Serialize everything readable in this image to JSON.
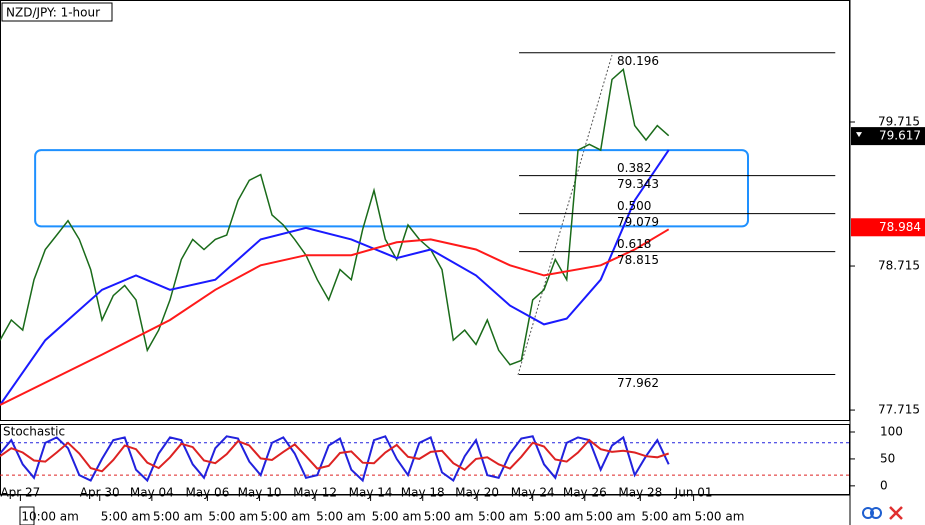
{
  "chart_data": [
    {
      "type": "line",
      "title": "NZD/JPY: 1-hour",
      "xlim": [
        0,
        75
      ],
      "ylim": [
        77.646,
        80.562
      ],
      "yticks": [
        77.715,
        78.715,
        79.715
      ],
      "xticks": [
        {
          "value": 1.8,
          "label": "Apr 27"
        },
        {
          "value": 8.8,
          "label": "Apr 30"
        },
        {
          "value": 13.4,
          "label": "May 04"
        },
        {
          "value": 18.3,
          "label": "May 06"
        },
        {
          "value": 22.9,
          "label": "May 10"
        },
        {
          "value": 27.8,
          "label": "May 12"
        },
        {
          "value": 32.7,
          "label": "May 14"
        },
        {
          "value": 37.3,
          "label": "May 18"
        },
        {
          "value": 42.1,
          "label": "May 20"
        },
        {
          "value": 47,
          "label": "May 24"
        },
        {
          "value": 51.6,
          "label": "May 26"
        },
        {
          "value": 56.5,
          "label": "May 28"
        },
        {
          "value": 61.2,
          "label": "Jun 01"
        }
      ],
      "time_labels": [
        "10:00 am",
        "5:00 am",
        "5:00 am",
        "5:00 am",
        "5:00 am",
        "5:00 am",
        "5:00 am",
        "5:00 am",
        "5:00 am",
        "5:00 am",
        "5:00 am",
        "5:00 am",
        "5:00 am"
      ],
      "series": [
        {
          "name": "Price",
          "color": "#1a6b1a",
          "x": [
            0,
            1,
            2,
            3,
            4,
            5,
            6,
            7,
            8,
            9,
            10,
            11,
            12,
            13,
            14,
            15,
            16,
            17,
            18,
            19,
            20,
            21,
            22,
            23,
            24,
            25,
            26,
            27,
            28,
            29,
            30,
            31,
            32,
            33,
            34,
            35,
            36,
            37,
            38,
            39,
            40,
            41,
            42,
            43,
            44,
            45,
            46,
            47,
            48,
            49,
            50,
            51,
            52,
            53,
            54,
            55,
            56,
            57,
            58,
            59
          ],
          "values": [
            78.2,
            78.34,
            78.27,
            78.62,
            78.83,
            78.93,
            79.03,
            78.9,
            78.69,
            78.34,
            78.51,
            78.58,
            78.48,
            78.13,
            78.27,
            78.48,
            78.76,
            78.9,
            78.83,
            78.9,
            78.93,
            79.17,
            79.31,
            79.35,
            79.07,
            79.0,
            78.9,
            78.79,
            78.62,
            78.48,
            78.69,
            78.62,
            78.97,
            79.24,
            78.9,
            78.76,
            79.0,
            78.9,
            78.83,
            78.69,
            78.2,
            78.27,
            78.17,
            78.34,
            78.13,
            78.03,
            78.06,
            78.48,
            78.55,
            78.76,
            78.62,
            79.52,
            79.56,
            79.52,
            80.01,
            80.08,
            79.69,
            79.59,
            79.69,
            79.62
          ]
        },
        {
          "name": "Fast MA",
          "color": "#1a1aff",
          "x": [
            0,
            4,
            9,
            12,
            15,
            19,
            23,
            27,
            31,
            35,
            38,
            42,
            45,
            48,
            50,
            53,
            56,
            59
          ],
          "values": [
            77.75,
            78.2,
            78.55,
            78.65,
            78.55,
            78.62,
            78.9,
            78.98,
            78.9,
            78.77,
            78.83,
            78.65,
            78.44,
            78.31,
            78.35,
            78.62,
            79.17,
            79.52
          ]
        },
        {
          "name": "Slow MA",
          "color": "#ff1a1a",
          "x": [
            0,
            9,
            15,
            19,
            23,
            27,
            31,
            35,
            38,
            42,
            45,
            48,
            53,
            56,
            59
          ],
          "values": [
            77.75,
            78.1,
            78.34,
            78.55,
            78.72,
            78.79,
            78.79,
            78.88,
            78.9,
            78.83,
            78.72,
            78.65,
            78.72,
            78.83,
            78.97
          ]
        }
      ],
      "zone": {
        "x": [
          3.1,
          66
        ],
        "y": [
          78.99,
          79.52
        ],
        "color": "#1e90ff"
      },
      "fib_levels": [
        {
          "ratio": null,
          "price": 80.196
        },
        {
          "ratio": "0.382",
          "price": 79.343
        },
        {
          "ratio": "0.500",
          "price": 79.079
        },
        {
          "ratio": "0.618",
          "price": 78.815
        },
        {
          "ratio": null,
          "price": 77.962
        }
      ],
      "fib_x": [
        45.8,
        73.7
      ],
      "price_labels": [
        {
          "value": 79.617,
          "color": "#000000"
        },
        {
          "value": 78.984,
          "color": "#ff0000"
        }
      ]
    },
    {
      "type": "line",
      "title": "Stochastic",
      "xlim": [
        0,
        75
      ],
      "ylim": [
        -17,
        113
      ],
      "yticks": [
        0,
        50,
        100
      ],
      "levels": [
        80,
        20
      ],
      "series": [
        {
          "name": "%K",
          "color": "#2222dd",
          "x": [
            0,
            1,
            2,
            3,
            4,
            5,
            6,
            7,
            8,
            9,
            10,
            11,
            12,
            13,
            14,
            15,
            16,
            17,
            18,
            19,
            20,
            21,
            22,
            23,
            24,
            25,
            26,
            27,
            28,
            29,
            30,
            31,
            32,
            33,
            34,
            35,
            36,
            37,
            38,
            39,
            40,
            41,
            42,
            43,
            44,
            45,
            46,
            47,
            48,
            49,
            50,
            51,
            52,
            53,
            54,
            55,
            56,
            57,
            58,
            59
          ],
          "values": [
            60,
            85,
            40,
            15,
            80,
            90,
            70,
            20,
            10,
            50,
            85,
            90,
            30,
            10,
            60,
            90,
            85,
            40,
            15,
            70,
            92,
            88,
            45,
            20,
            80,
            90,
            60,
            15,
            20,
            75,
            88,
            30,
            10,
            85,
            92,
            50,
            20,
            80,
            90,
            25,
            10,
            55,
            85,
            20,
            15,
            60,
            88,
            92,
            40,
            15,
            80,
            90,
            85,
            30,
            75,
            90,
            20,
            55,
            85,
            40
          ]
        },
        {
          "name": "%D",
          "color": "#dd2222",
          "x": [
            0,
            1,
            2,
            3,
            4,
            5,
            6,
            7,
            8,
            9,
            10,
            11,
            12,
            13,
            14,
            15,
            16,
            17,
            18,
            19,
            20,
            21,
            22,
            23,
            24,
            25,
            26,
            27,
            28,
            29,
            30,
            31,
            32,
            33,
            34,
            35,
            36,
            37,
            38,
            39,
            40,
            41,
            42,
            43,
            44,
            45,
            46,
            47,
            48,
            49,
            50,
            51,
            52,
            53,
            54,
            55,
            56,
            57,
            58,
            59
          ],
          "values": [
            55,
            70,
            62,
            47,
            45,
            62,
            80,
            60,
            33,
            27,
            48,
            75,
            68,
            43,
            33,
            53,
            78,
            72,
            47,
            42,
            59,
            83,
            75,
            51,
            48,
            63,
            77,
            55,
            32,
            37,
            61,
            64,
            43,
            42,
            62,
            76,
            54,
            50,
            63,
            65,
            42,
            30,
            50,
            53,
            40,
            32,
            54,
            80,
            73,
            49,
            45,
            62,
            85,
            68,
            63,
            65,
            62,
            55,
            53,
            60
          ]
        }
      ]
    }
  ]
}
